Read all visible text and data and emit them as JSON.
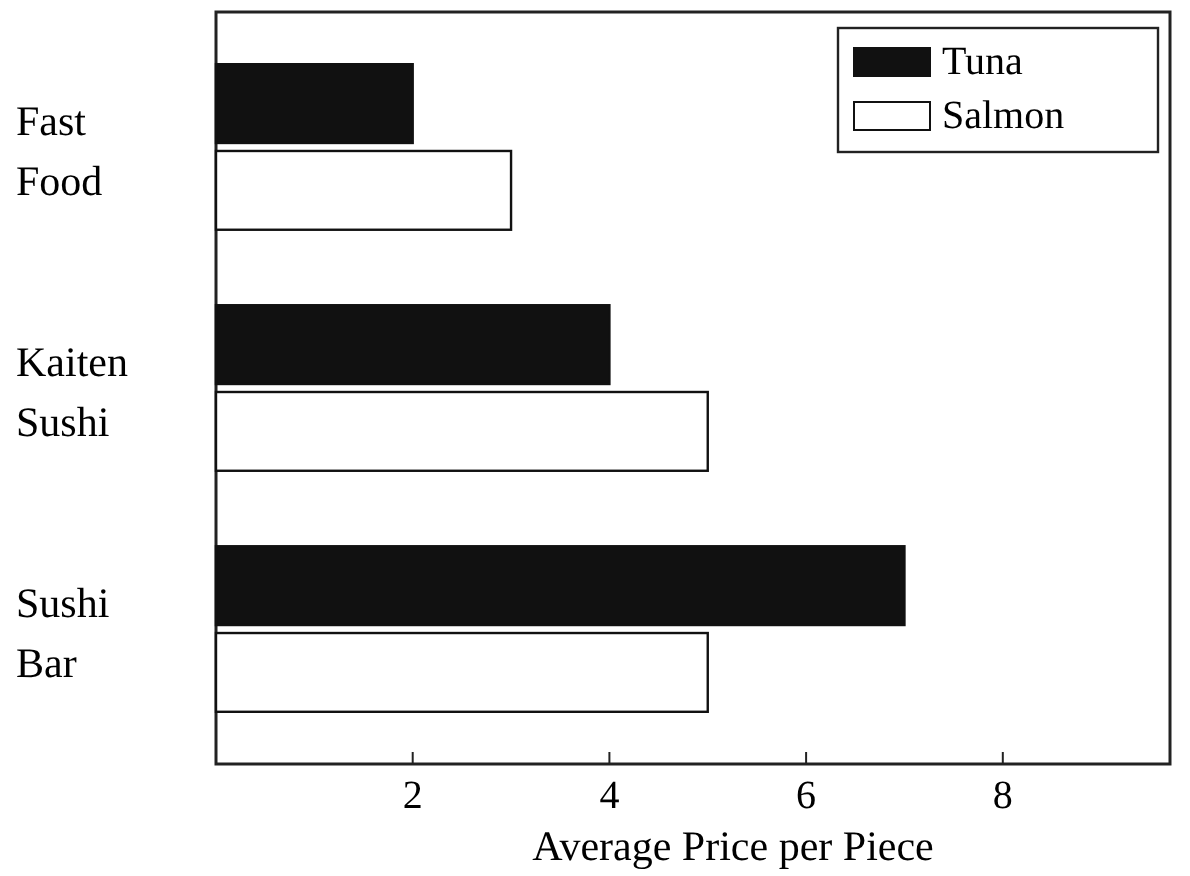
{
  "chart_data": {
    "type": "bar",
    "orientation": "horizontal",
    "xlabel": "Average Price per Piece",
    "categories": [
      "Fast Food",
      "Kaiten Sushi",
      "Sushi Bar"
    ],
    "series": [
      {
        "name": "Tuna",
        "color": "#111111",
        "values": [
          2,
          4,
          7
        ]
      },
      {
        "name": "Salmon",
        "color": "#ffffff",
        "values": [
          3,
          5,
          5
        ]
      }
    ],
    "xlim": [
      0,
      9.7
    ],
    "xticks": [
      2,
      4,
      6,
      8
    ],
    "legend": "top right",
    "grid": false
  }
}
